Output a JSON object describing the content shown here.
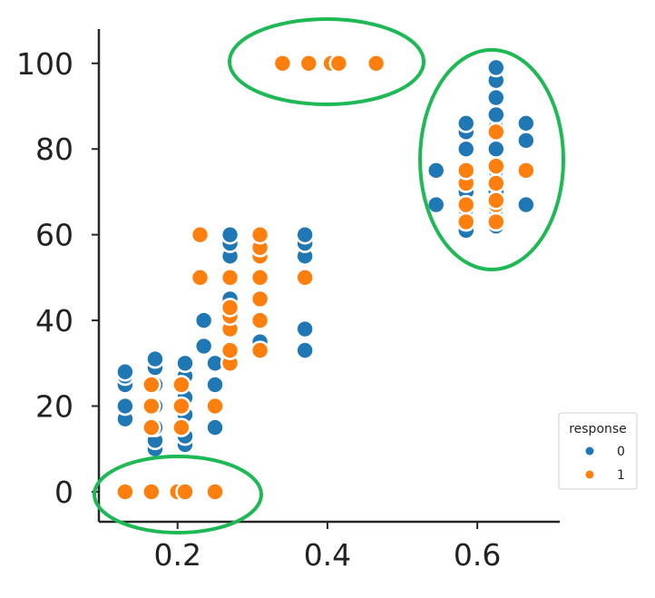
{
  "chart_data": {
    "type": "scatter",
    "title": "",
    "xlabel": "",
    "ylabel": "",
    "xlim": [
      0.095,
      0.71
    ],
    "ylim": [
      -7,
      108
    ],
    "xticks": [
      0.2,
      0.4,
      0.6
    ],
    "xtick_labels": [
      "0.2",
      "0.4",
      "0.6"
    ],
    "yticks": [
      0,
      20,
      40,
      60,
      80,
      100
    ],
    "ytick_labels": [
      "0",
      "20",
      "40",
      "60",
      "80",
      "100"
    ],
    "grid": false,
    "legend": {
      "title": "response",
      "placement": "bottom-right",
      "entries": [
        "0",
        "1"
      ]
    },
    "colors": {
      "0": "#1f77b4",
      "1": "#ff7f0e",
      "highlight": "#1db954"
    },
    "series": [
      {
        "name": "0",
        "points": [
          [
            0.13,
            17
          ],
          [
            0.13,
            20
          ],
          [
            0.13,
            25
          ],
          [
            0.13,
            27
          ],
          [
            0.13,
            28
          ],
          [
            0.17,
            10
          ],
          [
            0.17,
            12
          ],
          [
            0.17,
            15
          ],
          [
            0.17,
            20
          ],
          [
            0.17,
            25
          ],
          [
            0.17,
            29
          ],
          [
            0.17,
            31
          ],
          [
            0.21,
            11
          ],
          [
            0.21,
            13
          ],
          [
            0.21,
            18
          ],
          [
            0.21,
            22
          ],
          [
            0.21,
            27
          ],
          [
            0.21,
            30
          ],
          [
            0.25,
            15
          ],
          [
            0.25,
            20
          ],
          [
            0.25,
            25
          ],
          [
            0.25,
            30
          ],
          [
            0.235,
            34
          ],
          [
            0.235,
            40
          ],
          [
            0.27,
            40
          ],
          [
            0.27,
            45
          ],
          [
            0.27,
            50
          ],
          [
            0.27,
            55
          ],
          [
            0.27,
            58
          ],
          [
            0.27,
            60
          ],
          [
            0.31,
            35
          ],
          [
            0.31,
            40
          ],
          [
            0.31,
            50
          ],
          [
            0.31,
            55
          ],
          [
            0.31,
            60
          ],
          [
            0.37,
            33
          ],
          [
            0.37,
            38
          ],
          [
            0.37,
            50
          ],
          [
            0.37,
            55
          ],
          [
            0.37,
            58
          ],
          [
            0.37,
            60
          ],
          [
            0.545,
            67
          ],
          [
            0.545,
            75
          ],
          [
            0.585,
            61
          ],
          [
            0.585,
            63
          ],
          [
            0.585,
            66
          ],
          [
            0.585,
            70
          ],
          [
            0.585,
            75
          ],
          [
            0.585,
            80
          ],
          [
            0.585,
            84
          ],
          [
            0.585,
            86
          ],
          [
            0.625,
            62
          ],
          [
            0.625,
            66
          ],
          [
            0.625,
            70
          ],
          [
            0.625,
            75
          ],
          [
            0.625,
            80
          ],
          [
            0.625,
            85
          ],
          [
            0.625,
            88
          ],
          [
            0.625,
            92
          ],
          [
            0.625,
            96
          ],
          [
            0.625,
            99
          ],
          [
            0.665,
            67
          ],
          [
            0.665,
            82
          ],
          [
            0.665,
            86
          ]
        ]
      },
      {
        "name": "1",
        "points": [
          [
            0.13,
            0
          ],
          [
            0.165,
            0
          ],
          [
            0.2,
            0
          ],
          [
            0.21,
            0
          ],
          [
            0.25,
            0
          ],
          [
            0.165,
            15
          ],
          [
            0.165,
            20
          ],
          [
            0.165,
            25
          ],
          [
            0.205,
            15
          ],
          [
            0.205,
            20
          ],
          [
            0.205,
            25
          ],
          [
            0.25,
            20
          ],
          [
            0.23,
            50
          ],
          [
            0.23,
            60
          ],
          [
            0.27,
            30
          ],
          [
            0.27,
            33
          ],
          [
            0.27,
            38
          ],
          [
            0.27,
            41
          ],
          [
            0.27,
            43
          ],
          [
            0.27,
            50
          ],
          [
            0.31,
            33
          ],
          [
            0.31,
            40
          ],
          [
            0.31,
            45
          ],
          [
            0.31,
            50
          ],
          [
            0.31,
            55
          ],
          [
            0.31,
            57
          ],
          [
            0.31,
            60
          ],
          [
            0.37,
            50
          ],
          [
            0.34,
            100
          ],
          [
            0.375,
            100
          ],
          [
            0.405,
            100
          ],
          [
            0.415,
            100
          ],
          [
            0.465,
            100
          ],
          [
            0.585,
            63
          ],
          [
            0.585,
            67
          ],
          [
            0.585,
            72
          ],
          [
            0.585,
            75
          ],
          [
            0.625,
            63
          ],
          [
            0.625,
            67
          ],
          [
            0.625,
            68
          ],
          [
            0.625,
            72
          ],
          [
            0.625,
            76
          ],
          [
            0.625,
            84
          ],
          [
            0.665,
            75
          ]
        ]
      }
    ]
  }
}
